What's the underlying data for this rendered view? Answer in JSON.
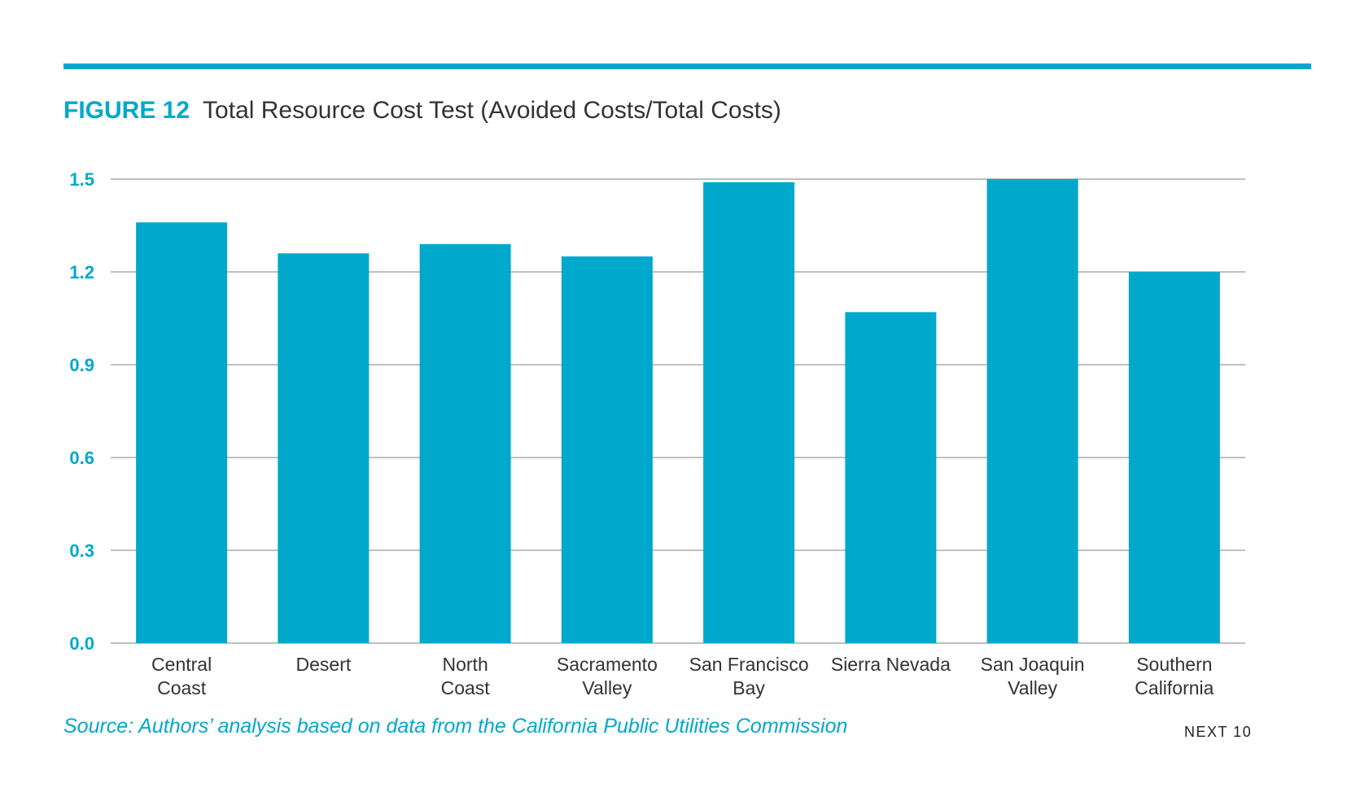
{
  "figure": {
    "label": "FIGURE 12",
    "title": "Total Resource Cost Test (Avoided Costs/Total Costs)"
  },
  "source": "Source: Authors’ analysis based on data from the California Public Utilities Commission",
  "brand": "NEXT 10",
  "colors": {
    "accent": "#00a8cc",
    "bar": "#00a8cc",
    "gridline": "#999999",
    "text": "#333333"
  },
  "chart_data": {
    "type": "bar",
    "categories": [
      [
        "Central",
        "Coast"
      ],
      [
        "Desert"
      ],
      [
        "North",
        "Coast"
      ],
      [
        "Sacramento",
        "Valley"
      ],
      [
        "San Francisco",
        "Bay"
      ],
      [
        "Sierra Nevada"
      ],
      [
        "San Joaquin",
        "Valley"
      ],
      [
        "Southern",
        "California"
      ]
    ],
    "values": [
      1.36,
      1.26,
      1.29,
      1.25,
      1.49,
      1.07,
      1.5,
      1.2
    ],
    "yticks": [
      "0.0",
      "0.3",
      "0.6",
      "0.9",
      "1.2",
      "1.5"
    ],
    "ylim": [
      0,
      1.5
    ],
    "grid": true,
    "legend": "none",
    "title": "Total Resource Cost Test (Avoided Costs/Total Costs)"
  }
}
